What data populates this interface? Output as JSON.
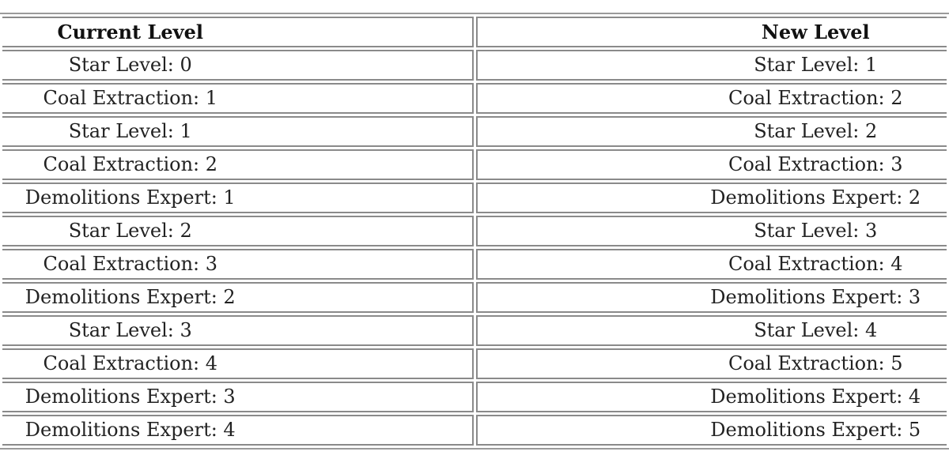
{
  "table": {
    "headers": [
      "Current Level",
      "New Level"
    ],
    "rows": [
      [
        "Star Level: 0",
        "Star Level: 1"
      ],
      [
        "Coal Extraction: 1",
        "Coal Extraction: 2"
      ],
      [
        "Star Level: 1",
        "Star Level: 2"
      ],
      [
        "Coal Extraction: 2",
        "Coal Extraction: 3"
      ],
      [
        "Demolitions Expert: 1",
        "Demolitions Expert: 2"
      ],
      [
        "Star Level: 2",
        "Star Level: 3"
      ],
      [
        "Coal Extraction: 3",
        "Coal Extraction: 4"
      ],
      [
        "Demolitions Expert: 2",
        "Demolitions Expert: 3"
      ],
      [
        "Star Level: 3",
        "Star Level: 4"
      ],
      [
        "Coal Extraction: 4",
        "Coal Extraction: 5"
      ],
      [
        "Demolitions Expert: 3",
        "Demolitions Expert: 4"
      ],
      [
        "Demolitions Expert: 4",
        "Demolitions Expert: 5"
      ]
    ]
  }
}
